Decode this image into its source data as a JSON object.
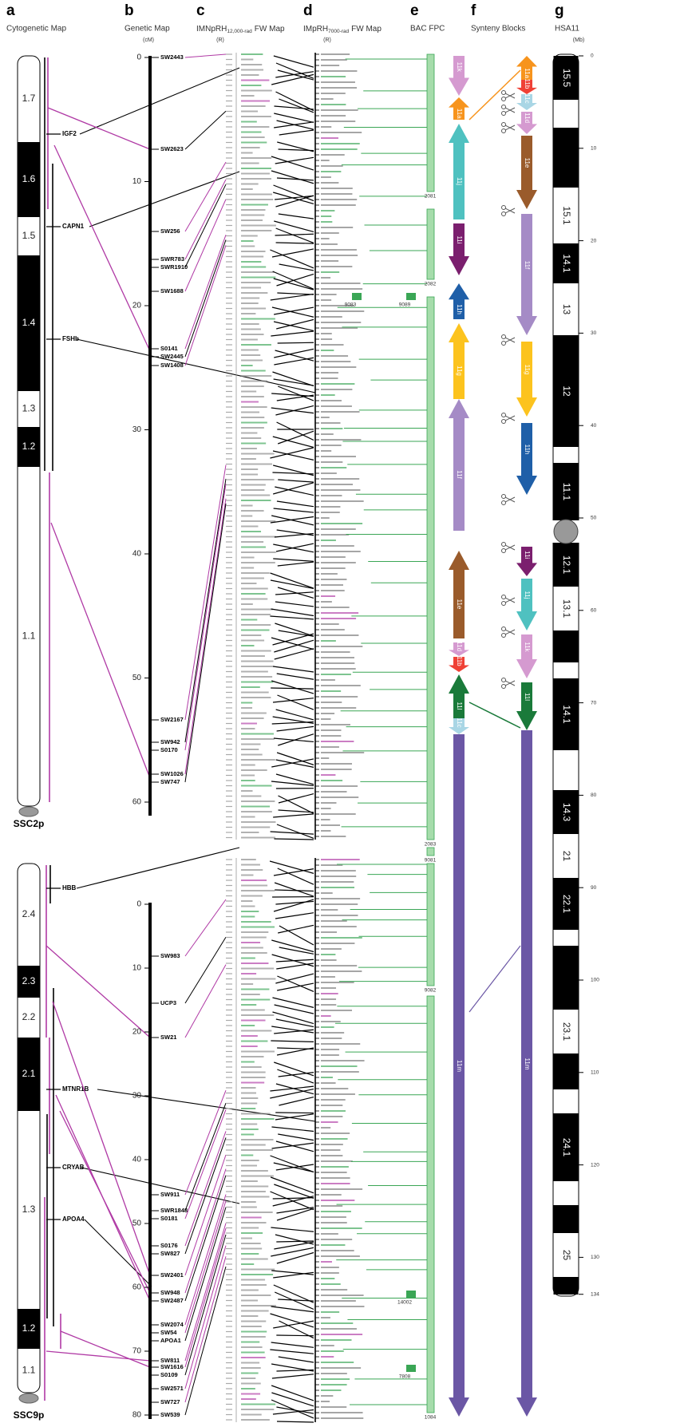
{
  "headers": [
    {
      "letter": "a",
      "title": "Cytogenetic Map"
    },
    {
      "letter": "b",
      "title": "Genetic Map",
      "unit": "(cM)"
    },
    {
      "letter": "c",
      "title": "IMNpRH",
      "sub": "12,000-rad",
      "title_end": "FW Map",
      "unit": "(R)"
    },
    {
      "letter": "d",
      "title": "IMpRH",
      "sub": "7000-rad",
      "title_end": "FW Map",
      "unit": "(R)"
    },
    {
      "letter": "e",
      "title": "BAC FPC"
    },
    {
      "letter": "f",
      "title": "Synteny Blocks"
    },
    {
      "letter": "g",
      "title": "HSA11",
      "unit": "(Mb)"
    }
  ],
  "ssc2p": {
    "label": "SSC2p",
    "bands": [
      "1.7",
      "1.6",
      "1.5",
      "1.4",
      "1.3",
      "1.2",
      "1.1"
    ],
    "genes": [
      "IGF2",
      "CAPN1",
      "FSHb"
    ],
    "cm_ticks": [
      0,
      10,
      20,
      30,
      40,
      50,
      60
    ],
    "markers": [
      "SW2443",
      "SW2623",
      "SW256",
      "SWR783",
      "SWR1910",
      "SW1688",
      "S0141",
      "SW2445",
      "SW1408",
      "SW2167",
      "SW942",
      "S0170",
      "SW1026",
      "SW747"
    ]
  },
  "ssc9p": {
    "label": "SSC9p",
    "bands": [
      "2.4",
      "2.3",
      "2.2",
      "2.1",
      "1.3",
      "1.2",
      "1.1"
    ],
    "genes": [
      "HBB",
      "MTNR1B",
      "CRYAB",
      "APOA4"
    ],
    "cm_ticks": [
      0,
      10,
      20,
      30,
      40,
      50,
      60,
      70,
      80
    ],
    "markers": [
      "SW983",
      "UCP3",
      "SW21",
      "SW911",
      "SWR1848",
      "S0181",
      "S0176",
      "SW827",
      "SW2401",
      "SW948",
      "SW2487",
      "SW2074",
      "SW54",
      "APOA1",
      "SW811",
      "SW1616",
      "S0109",
      "SW2571",
      "SW727",
      "SW539"
    ]
  },
  "bac_contigs": [
    "2081",
    "2082",
    "2083",
    "9081",
    "9082",
    "1084"
  ],
  "bac_callouts": [
    "9083",
    "9089",
    "14002",
    "7808"
  ],
  "synteny_pig": [
    "11k",
    "11a",
    "11j",
    "11i",
    "11h",
    "11g",
    "11f",
    "11e",
    "11d",
    "11b",
    "11l",
    "11c",
    "11m"
  ],
  "synteny_human": [
    "11a",
    "11b",
    "11c",
    "11d",
    "11e",
    "11f",
    "11g",
    "11h",
    "11i",
    "11j",
    "11k",
    "11l",
    "11m"
  ],
  "hsa11": {
    "ticks": [
      0,
      10,
      20,
      30,
      40,
      50,
      60,
      70,
      80,
      90,
      100,
      110,
      120,
      130,
      134
    ],
    "bands": [
      "15.5",
      "15.1",
      "14.1",
      "13",
      "12",
      "11.1",
      "12.1",
      "13.1",
      "14.1",
      "14.3",
      "21",
      "22.1",
      "23.1",
      "24.1",
      "25"
    ]
  }
}
